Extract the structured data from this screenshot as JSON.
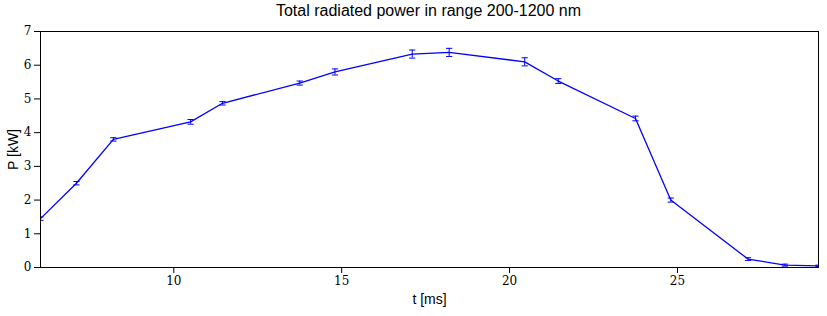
{
  "chart_data": {
    "type": "line",
    "title": "Total radiated power in range 200-1200 nm",
    "x_label": "t [ms]",
    "y_label": "P [kW]",
    "x": [
      6.03,
      7.1,
      8.2,
      10.5,
      11.45,
      13.75,
      14.8,
      17.1,
      18.2,
      20.45,
      21.45,
      23.75,
      24.8,
      27.1,
      28.2,
      29.2
    ],
    "values": [
      1.45,
      2.5,
      3.8,
      4.32,
      4.87,
      5.47,
      5.8,
      6.33,
      6.38,
      6.1,
      5.53,
      4.42,
      2.0,
      0.25,
      0.07,
      0.05
    ],
    "errors": [
      0.05,
      0.05,
      0.05,
      0.07,
      0.05,
      0.06,
      0.09,
      0.12,
      0.12,
      0.12,
      0.07,
      0.07,
      0.06,
      0.04,
      0.03,
      0.02
    ],
    "color": "#0000ff",
    "xlim": [
      6.03,
      29.2
    ],
    "ylim": [
      0,
      7
    ],
    "xticks": [
      10,
      15,
      20,
      25
    ],
    "yticks": [
      0,
      1,
      2,
      3,
      4,
      5,
      6,
      7
    ],
    "grid": false
  }
}
